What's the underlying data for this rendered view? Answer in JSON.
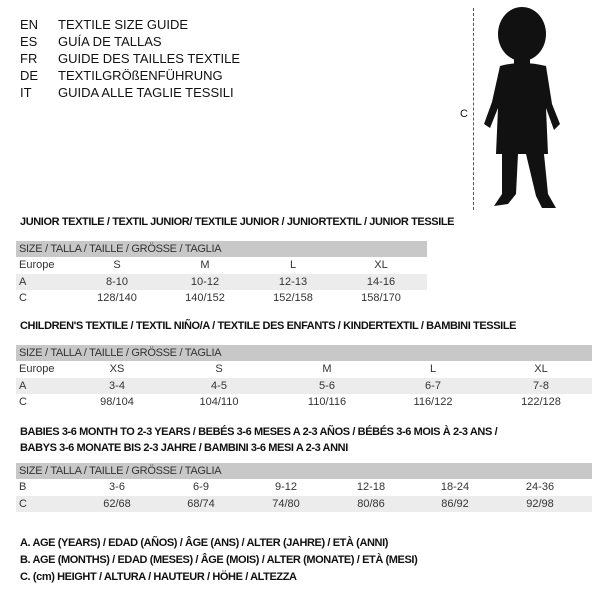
{
  "languages": [
    {
      "code": "EN",
      "title": "TEXTILE SIZE GUIDE"
    },
    {
      "code": "ES",
      "title": "GUÍA DE TALLAS"
    },
    {
      "code": "FR",
      "title": "GUIDE DES TAILLES TEXTILE"
    },
    {
      "code": "DE",
      "title": "TEXTILGRÖßENFÜHRUNG"
    },
    {
      "code": "IT",
      "title": "GUIDA ALLE TAGLIE TESSILI"
    }
  ],
  "figure": {
    "height_label": "C",
    "icon": "child-silhouette"
  },
  "size_header": "SIZE / TALLA / TAILLE / GRÖSSE / TAGLIA",
  "junior": {
    "title": "JUNIOR TEXTILE / TEXTIL JUNIOR/ TEXTILE JUNIOR / JUNIORTEXTIL / JUNIOR TESSILE",
    "rows": [
      {
        "label": "Europe",
        "values": [
          "S",
          "M",
          "L",
          "XL"
        ]
      },
      {
        "label": "A",
        "values": [
          "8-10",
          "10-12",
          "12-13",
          "14-16"
        ]
      },
      {
        "label": "C",
        "values": [
          "128/140",
          "140/152",
          "152/158",
          "158/170"
        ]
      }
    ]
  },
  "children": {
    "title": "CHILDREN'S TEXTILE / TEXTIL NIÑO/A / TEXTILE DES ENFANTS / KINDERTEXTIL / BAMBINI TESSILE",
    "rows": [
      {
        "label": "Europe",
        "values": [
          "XS",
          "S",
          "M",
          "L",
          "XL"
        ]
      },
      {
        "label": "A",
        "values": [
          "3-4",
          "4-5",
          "5-6",
          "6-7",
          "7-8"
        ]
      },
      {
        "label": "C",
        "values": [
          "98/104",
          "104/110",
          "110/116",
          "116/122",
          "122/128"
        ]
      }
    ]
  },
  "babies": {
    "title_line1": "BABIES 3-6 MONTH TO 2-3 YEARS / BEBÉS 3-6 MESES A 2-3 AÑOS / BÉBÉS 3-6 MOIS À 2-3 ANS /",
    "title_line2": "BABYS 3-6 MONATE BIS 2-3 JAHRE / BAMBINI 3-6 MESI A 2-3 ANNI",
    "rows": [
      {
        "label": "B",
        "values": [
          "3-6",
          "6-9",
          "9-12",
          "12-18",
          "18-24",
          "24-36"
        ]
      },
      {
        "label": "C",
        "values": [
          "62/68",
          "68/74",
          "74/80",
          "80/86",
          "86/92",
          "92/98"
        ]
      }
    ]
  },
  "legend": [
    "A. AGE (YEARS) / EDAD (AÑOS) / ÂGE (ANS) / ALTER (JAHRE) / ETÀ (ANNI)",
    "B. AGE (MONTHS) / EDAD (MESES) / ÂGE (MOIS) / ALTER (MONATE) / ETÀ (MESI)",
    "C. (cm) HEIGHT / ALTURA / HAUTEUR / HÖHE / ALTEZZA"
  ]
}
